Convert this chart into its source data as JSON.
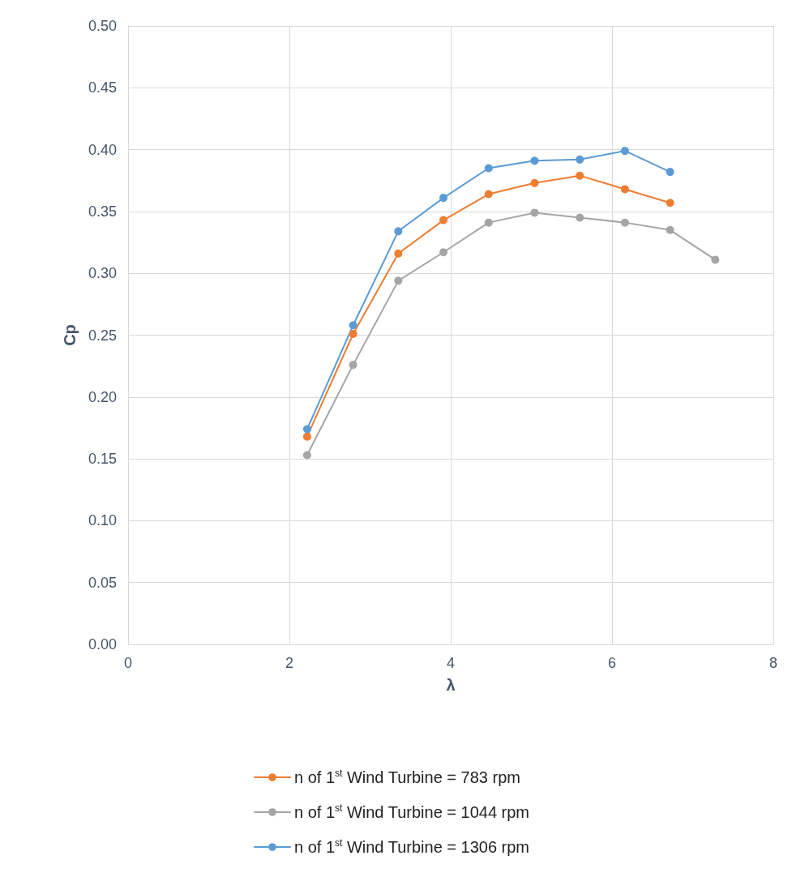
{
  "chart_data": {
    "type": "line",
    "xlabel": "λ",
    "ylabel": "Cp",
    "xlim": [
      0,
      8
    ],
    "xticks": [
      0,
      2,
      4,
      6,
      8
    ],
    "ylim": [
      0,
      0.5
    ],
    "yticks": [
      {
        "value": 0,
        "label": "0.00"
      },
      {
        "value": 0.05,
        "label": "0.05"
      },
      {
        "value": 0.1,
        "label": "0.10"
      },
      {
        "value": 0.15,
        "label": "0.15"
      },
      {
        "value": 0.2,
        "label": "0.20"
      },
      {
        "value": 0.25,
        "label": "0.25"
      },
      {
        "value": 0.3,
        "label": "0.30"
      },
      {
        "value": 0.35,
        "label": "0.35"
      },
      {
        "value": 0.4,
        "label": "0.40"
      },
      {
        "value": 0.45,
        "label": "0.45"
      },
      {
        "value": 0.5,
        "label": "0.50"
      }
    ],
    "grid": true,
    "legend": "bottom",
    "marker": "circle",
    "line_style": "solid",
    "series": [
      {
        "name": "n of 1$^{st}$ Wind Turbine = 783 rpm",
        "color": "#ed7d31",
        "x": [
          2.22,
          2.79,
          3.35,
          3.91,
          4.47,
          5.04,
          5.6,
          6.16,
          6.72
        ],
        "values": [
          0.168,
          0.251,
          0.316,
          0.343,
          0.364,
          0.373,
          0.379,
          0.368,
          0.357
        ]
      },
      {
        "name": "n of 1$^{st}$ Wind Turbine = 1044 rpm",
        "color": "#a5a5a5",
        "x": [
          2.22,
          2.79,
          3.35,
          3.91,
          4.47,
          5.04,
          5.6,
          6.16,
          6.72,
          7.28
        ],
        "values": [
          0.153,
          0.226,
          0.294,
          0.317,
          0.341,
          0.349,
          0.345,
          0.341,
          0.335,
          0.311
        ]
      },
      {
        "name": "n of 1$^{st}$ Wind Turbine = 1306 rpm",
        "color": "#5b9bd5",
        "x": [
          2.22,
          2.79,
          3.35,
          3.91,
          4.47,
          5.04,
          5.6,
          6.16,
          6.72
        ],
        "values": [
          0.174,
          0.258,
          0.334,
          0.361,
          0.385,
          0.391,
          0.392,
          0.399,
          0.382
        ]
      }
    ]
  }
}
